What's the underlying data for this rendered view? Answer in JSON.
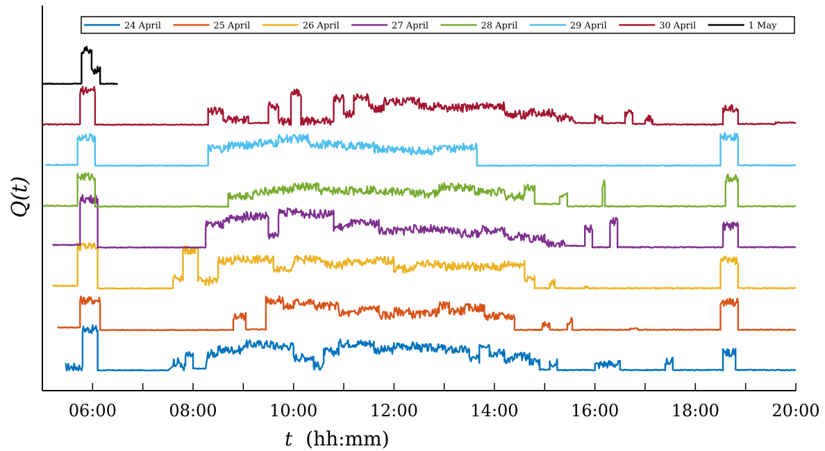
{
  "chart_data": {
    "type": "line",
    "title": "",
    "xlabel": "t",
    "xlabel_unit": "(hh:mm)",
    "ylabel": "Q(t)",
    "xlim": [
      5.0,
      20.0
    ],
    "x_ticks": [
      "06:00",
      "08:00",
      "10:00",
      "12:00",
      "14:00",
      "16:00",
      "18:00",
      "20:00"
    ],
    "grid": false,
    "legend_position": "top",
    "note": "Each day's series is drawn with a vertical offset (stacked); y-axis has no tick values.",
    "series": [
      {
        "name": "24 April",
        "color": "#0072BD",
        "range": [
          5.4,
          20.0
        ],
        "segments": [
          [
            5.45,
            5.8,
            0.35
          ],
          [
            5.8,
            6.1,
            4.4
          ],
          [
            6.1,
            7.5,
            0.02
          ],
          [
            7.6,
            7.75,
            0.9
          ],
          [
            7.75,
            7.85,
            0.4
          ],
          [
            7.85,
            8.0,
            1.6
          ],
          [
            8.0,
            8.25,
            0.2
          ],
          [
            8.3,
            8.5,
            1.8
          ],
          [
            8.5,
            9.0,
            2.2
          ],
          [
            9.0,
            9.6,
            2.8
          ],
          [
            9.6,
            10.0,
            2.6
          ],
          [
            10.0,
            10.4,
            1.4
          ],
          [
            10.4,
            10.6,
            0.5
          ],
          [
            10.6,
            10.9,
            2.0
          ],
          [
            10.9,
            11.6,
            2.9
          ],
          [
            11.6,
            12.0,
            2.2
          ],
          [
            12.0,
            12.5,
            2.6
          ],
          [
            12.5,
            13.0,
            2.4
          ],
          [
            13.0,
            13.5,
            2.2
          ],
          [
            13.5,
            13.7,
            1.2
          ],
          [
            13.7,
            13.9,
            2.8
          ],
          [
            13.9,
            14.2,
            1.9
          ],
          [
            14.2,
            14.4,
            1.2
          ],
          [
            14.4,
            14.7,
            1.5
          ],
          [
            14.7,
            14.9,
            1.0
          ],
          [
            14.9,
            15.1,
            0.1
          ],
          [
            15.1,
            15.25,
            0.8
          ],
          [
            15.25,
            16.0,
            0.05
          ],
          [
            16.0,
            16.1,
            0.6
          ],
          [
            16.1,
            16.5,
            0.7
          ],
          [
            16.5,
            17.4,
            0.05
          ],
          [
            17.4,
            17.55,
            1.0
          ],
          [
            17.55,
            18.55,
            0.05
          ],
          [
            18.55,
            18.8,
            1.9
          ],
          [
            18.8,
            20.0,
            0.05
          ]
        ]
      },
      {
        "name": "25 April",
        "color": "#D95319",
        "range": [
          5.3,
          20.0
        ],
        "segments": [
          [
            5.3,
            5.75,
            0.3
          ],
          [
            5.75,
            6.15,
            3.2
          ],
          [
            6.15,
            8.8,
            0.02
          ],
          [
            8.8,
            9.05,
            1.5
          ],
          [
            9.05,
            9.45,
            0.1
          ],
          [
            9.45,
            9.8,
            3.2
          ],
          [
            9.8,
            10.0,
            2.5
          ],
          [
            10.0,
            10.4,
            3.0
          ],
          [
            10.4,
            10.9,
            2.6
          ],
          [
            10.9,
            11.3,
            1.8
          ],
          [
            11.3,
            11.7,
            2.3
          ],
          [
            11.7,
            12.0,
            1.6
          ],
          [
            12.0,
            12.3,
            2.0
          ],
          [
            12.3,
            12.7,
            1.7
          ],
          [
            12.7,
            12.9,
            1.9
          ],
          [
            12.9,
            13.1,
            2.6
          ],
          [
            13.1,
            13.4,
            2.1
          ],
          [
            13.4,
            13.8,
            2.4
          ],
          [
            13.8,
            14.4,
            1.5
          ],
          [
            14.4,
            14.95,
            0.05
          ],
          [
            14.95,
            15.1,
            0.5
          ],
          [
            15.1,
            15.45,
            0.05
          ],
          [
            15.45,
            15.55,
            0.9
          ],
          [
            15.55,
            16.7,
            0.05
          ],
          [
            16.7,
            16.85,
            0.2
          ],
          [
            16.85,
            18.5,
            0.05
          ],
          [
            18.5,
            18.85,
            3.0
          ],
          [
            18.85,
            20.0,
            0.05
          ]
        ]
      },
      {
        "name": "26 April",
        "color": "#EDB120",
        "range": [
          5.2,
          20.0
        ],
        "segments": [
          [
            5.2,
            5.7,
            0.3
          ],
          [
            5.7,
            6.1,
            4.5
          ],
          [
            6.1,
            7.6,
            0.02
          ],
          [
            7.6,
            7.8,
            1.2
          ],
          [
            7.8,
            8.1,
            4.1
          ],
          [
            8.1,
            8.5,
            0.8
          ],
          [
            8.5,
            8.8,
            3.0
          ],
          [
            8.8,
            9.6,
            3.1
          ],
          [
            9.6,
            10.0,
            2.2
          ],
          [
            10.0,
            10.6,
            3.1
          ],
          [
            10.6,
            11.0,
            2.5
          ],
          [
            11.0,
            11.6,
            2.8
          ],
          [
            11.6,
            12.0,
            3.0
          ],
          [
            12.0,
            12.4,
            2.1
          ],
          [
            12.4,
            13.0,
            2.6
          ],
          [
            13.0,
            13.6,
            2.4
          ],
          [
            13.6,
            14.2,
            2.3
          ],
          [
            14.2,
            14.6,
            2.6
          ],
          [
            14.6,
            14.8,
            1.2
          ],
          [
            14.8,
            15.1,
            0.05
          ],
          [
            15.1,
            15.2,
            0.7
          ],
          [
            15.2,
            15.8,
            0.05
          ],
          [
            15.8,
            15.85,
            0.2
          ],
          [
            15.85,
            18.5,
            0.05
          ],
          [
            18.5,
            18.85,
            3.0
          ],
          [
            18.85,
            20.0,
            0.05
          ]
        ]
      },
      {
        "name": "27 April",
        "color": "#7E2F8E",
        "range": [
          5.2,
          20.0
        ],
        "segments": [
          [
            5.2,
            5.75,
            0.3
          ],
          [
            5.75,
            6.1,
            5.2
          ],
          [
            6.1,
            8.25,
            0.02
          ],
          [
            8.25,
            8.6,
            2.4
          ],
          [
            8.6,
            9.0,
            3.1
          ],
          [
            9.0,
            9.5,
            3.4
          ],
          [
            9.5,
            9.7,
            1.2
          ],
          [
            9.7,
            10.2,
            3.8
          ],
          [
            10.2,
            10.8,
            3.6
          ],
          [
            10.8,
            11.1,
            2.2
          ],
          [
            11.1,
            11.7,
            2.6
          ],
          [
            11.7,
            12.2,
            1.8
          ],
          [
            12.2,
            12.8,
            2.0
          ],
          [
            12.8,
            13.3,
            1.8
          ],
          [
            13.3,
            13.7,
            1.5
          ],
          [
            13.7,
            14.2,
            1.9
          ],
          [
            14.2,
            14.7,
            1.2
          ],
          [
            14.7,
            15.0,
            1.0
          ],
          [
            15.0,
            15.4,
            0.5
          ],
          [
            15.4,
            15.8,
            0.2
          ],
          [
            15.8,
            15.95,
            2.0
          ],
          [
            15.95,
            16.3,
            0.05
          ],
          [
            16.3,
            16.45,
            2.8
          ],
          [
            16.45,
            18.55,
            0.05
          ],
          [
            18.55,
            18.85,
            2.3
          ],
          [
            18.85,
            20.0,
            0.05
          ]
        ]
      },
      {
        "name": "28 April",
        "color": "#77AC30",
        "range": [
          5.0,
          20.0
        ],
        "segments": [
          [
            5.0,
            5.7,
            0.1
          ],
          [
            5.7,
            6.05,
            3.2
          ],
          [
            6.05,
            8.7,
            0.02
          ],
          [
            8.7,
            9.2,
            1.2
          ],
          [
            9.2,
            9.6,
            1.6
          ],
          [
            9.6,
            10.0,
            1.8
          ],
          [
            10.0,
            10.5,
            2.1
          ],
          [
            10.5,
            11.2,
            1.7
          ],
          [
            11.2,
            11.8,
            1.8
          ],
          [
            11.8,
            12.4,
            1.6
          ],
          [
            12.4,
            12.9,
            1.4
          ],
          [
            12.9,
            13.6,
            2.1
          ],
          [
            13.6,
            14.2,
            1.6
          ],
          [
            14.2,
            14.6,
            1.1
          ],
          [
            14.6,
            14.8,
            2.1
          ],
          [
            14.8,
            15.3,
            0.3
          ],
          [
            15.3,
            15.45,
            1.4
          ],
          [
            15.45,
            16.15,
            0.05
          ],
          [
            16.15,
            16.2,
            2.5
          ],
          [
            16.2,
            18.6,
            0.05
          ],
          [
            18.6,
            18.85,
            3.0
          ],
          [
            18.85,
            20.0,
            0.05
          ]
        ]
      },
      {
        "name": "29 April",
        "color": "#4DBEEE",
        "range": [
          5.05,
          20.0
        ],
        "segments": [
          [
            5.05,
            5.7,
            0.1
          ],
          [
            5.7,
            6.05,
            3.0
          ],
          [
            6.05,
            8.3,
            0.02
          ],
          [
            8.3,
            8.7,
            1.8
          ],
          [
            8.7,
            9.2,
            2.2
          ],
          [
            9.2,
            9.7,
            2.4
          ],
          [
            9.7,
            10.3,
            2.9
          ],
          [
            10.3,
            11.0,
            2.3
          ],
          [
            11.0,
            11.6,
            2.1
          ],
          [
            11.6,
            12.2,
            1.8
          ],
          [
            12.2,
            12.8,
            1.6
          ],
          [
            12.8,
            13.3,
            1.8
          ],
          [
            13.3,
            13.65,
            2.1
          ],
          [
            13.65,
            18.5,
            0.02
          ],
          [
            18.5,
            18.85,
            3.1
          ],
          [
            18.85,
            20.0,
            0.05
          ]
        ]
      },
      {
        "name": "30 April",
        "color": "#A2142F",
        "range": [
          5.0,
          20.0
        ],
        "segments": [
          [
            5.0,
            5.75,
            0.05
          ],
          [
            5.75,
            6.05,
            3.7
          ],
          [
            6.05,
            8.3,
            0.02
          ],
          [
            8.3,
            8.6,
            1.5
          ],
          [
            8.6,
            9.1,
            0.5
          ],
          [
            9.1,
            9.5,
            0.2
          ],
          [
            9.5,
            9.7,
            2.0
          ],
          [
            9.7,
            9.95,
            0.4
          ],
          [
            9.95,
            10.15,
            3.5
          ],
          [
            10.15,
            10.8,
            0.4
          ],
          [
            10.8,
            11.0,
            2.8
          ],
          [
            11.0,
            11.2,
            1.2
          ],
          [
            11.2,
            11.5,
            2.9
          ],
          [
            11.5,
            11.8,
            1.8
          ],
          [
            11.8,
            12.5,
            2.5
          ],
          [
            12.5,
            13.0,
            2.0
          ],
          [
            13.0,
            13.5,
            1.8
          ],
          [
            13.5,
            14.2,
            2.0
          ],
          [
            14.2,
            14.7,
            1.1
          ],
          [
            14.7,
            15.2,
            1.3
          ],
          [
            15.2,
            15.6,
            0.8
          ],
          [
            15.6,
            16.0,
            0.2
          ],
          [
            16.0,
            16.15,
            0.9
          ],
          [
            16.15,
            16.6,
            0.2
          ],
          [
            16.6,
            16.75,
            1.2
          ],
          [
            16.75,
            17.0,
            0.1
          ],
          [
            17.0,
            17.15,
            0.6
          ],
          [
            17.15,
            18.55,
            0.05
          ],
          [
            18.55,
            18.85,
            1.8
          ],
          [
            18.85,
            19.6,
            0.1
          ],
          [
            19.6,
            20.0,
            0.25
          ]
        ]
      },
      {
        "name": "1 May",
        "color": "#000000",
        "range": [
          5.0,
          6.5
        ],
        "segments": [
          [
            5.0,
            5.78,
            0.02
          ],
          [
            5.78,
            5.98,
            3.6
          ],
          [
            5.98,
            6.15,
            1.5
          ],
          [
            6.15,
            6.5,
            0.02
          ]
        ]
      }
    ]
  }
}
